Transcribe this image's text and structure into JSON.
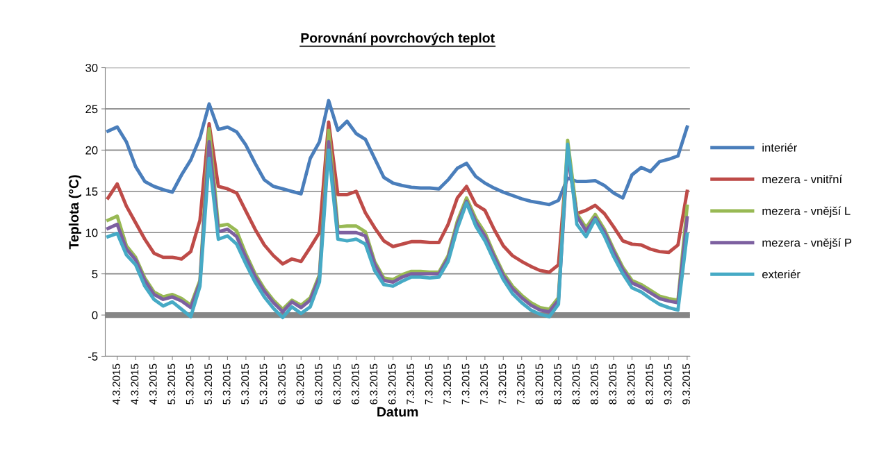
{
  "chart_data": {
    "type": "line",
    "title": "Porovnání povrchových teplot",
    "xlabel": "Datum",
    "ylabel": "Teplota (°C)",
    "categories": [
      null,
      "4.3.2015",
      null,
      "4.3.2015",
      null,
      "4.3.2015",
      null,
      "5.3.2015",
      null,
      "5.3.2015",
      null,
      "5.3.2015",
      null,
      "5.3.2015",
      null,
      "5.3.2015",
      null,
      "5.3.2015",
      null,
      "6.3.2015",
      null,
      "6.3.2015",
      null,
      "6.3.2015",
      null,
      "6.3.2015",
      null,
      "6.3.2015",
      null,
      "6.3.2015",
      null,
      "6.3.2015",
      null,
      "7.3.2015",
      null,
      "7.3.2015",
      null,
      "7.3.2015",
      null,
      "7.3.2015",
      null,
      "7.3.2015",
      null,
      "7.3.2015",
      null,
      "7.3.2015",
      null,
      "8.3.2015",
      null,
      "8.3.2015",
      null,
      "8.3.2015",
      null,
      "8.3.2015",
      null,
      "8.3.2015",
      null,
      "8.3.2015",
      null,
      "8.3.2015",
      null,
      "9.3.2015",
      null,
      "9.3.2015"
    ],
    "ylim": [
      -5,
      30
    ],
    "yticks": [
      -5,
      0,
      5,
      10,
      15,
      20,
      25,
      30
    ],
    "grid": "y",
    "legend": "right",
    "marker": "none",
    "line_style": "solid",
    "ref_lines": [
      {
        "axis": "y",
        "value": 0,
        "color": "#868686"
      }
    ],
    "series": [
      {
        "name": "interiér",
        "color": "#4a7ebb",
        "values": [
          22.3,
          22.8,
          21.0,
          18.0,
          16.2,
          15.6,
          15.2,
          14.9,
          17.0,
          18.8,
          21.5,
          25.6,
          22.5,
          22.8,
          22.2,
          20.6,
          18.4,
          16.4,
          15.6,
          15.3,
          15.0,
          14.7,
          19.0,
          21.0,
          26.0,
          22.4,
          23.5,
          22.0,
          21.3,
          19.0,
          16.7,
          16.0,
          15.7,
          15.5,
          15.4,
          15.4,
          15.3,
          16.4,
          17.8,
          18.4,
          16.8,
          16.0,
          15.4,
          14.9,
          14.5,
          14.1,
          13.8,
          13.6,
          13.4,
          13.9,
          16.6,
          16.2,
          16.2,
          16.3,
          15.7,
          14.8,
          14.2,
          17.0,
          17.9,
          17.4,
          18.6,
          18.9,
          19.3,
          22.8
        ]
      },
      {
        "name": "mezera - vnitřní",
        "color": "#be4b48",
        "values": [
          14.2,
          15.9,
          13.2,
          11.2,
          9.2,
          7.5,
          7.0,
          7.0,
          6.8,
          7.7,
          11.5,
          23.2,
          15.6,
          15.3,
          14.8,
          12.6,
          10.4,
          8.5,
          7.2,
          6.2,
          6.8,
          6.5,
          8.2,
          10.0,
          23.4,
          14.6,
          14.6,
          15.0,
          12.4,
          10.6,
          9.0,
          8.3,
          8.6,
          8.9,
          8.9,
          8.8,
          8.8,
          11.0,
          14.2,
          15.6,
          13.4,
          12.7,
          10.4,
          8.4,
          7.2,
          6.5,
          5.9,
          5.4,
          5.2,
          6.1,
          19.7,
          12.3,
          12.7,
          13.3,
          12.3,
          10.7,
          9.0,
          8.6,
          8.5,
          8.0,
          7.7,
          7.6,
          8.5,
          15.0
        ]
      },
      {
        "name": "mezera - vnější L",
        "color": "#98b954",
        "values": [
          11.5,
          12.0,
          8.4,
          7.0,
          4.5,
          2.8,
          2.2,
          2.5,
          2.0,
          1.2,
          4.2,
          22.6,
          10.8,
          11.0,
          10.2,
          7.4,
          5.0,
          3.2,
          1.8,
          0.7,
          1.8,
          1.2,
          2.1,
          4.9,
          22.4,
          10.7,
          10.8,
          10.8,
          10.1,
          6.5,
          4.5,
          4.3,
          4.9,
          5.3,
          5.3,
          5.2,
          5.2,
          7.2,
          11.4,
          14.2,
          11.7,
          10.0,
          7.4,
          5.1,
          3.5,
          2.4,
          1.5,
          0.9,
          0.7,
          2.1,
          21.2,
          12.3,
          10.6,
          12.2,
          10.4,
          8.0,
          5.8,
          4.2,
          3.7,
          3.0,
          2.3,
          2.0,
          1.8,
          13.2
        ]
      },
      {
        "name": "mezera - vnější P",
        "color": "#7d60a0",
        "values": [
          10.5,
          11.0,
          8.0,
          6.7,
          4.2,
          2.5,
          1.9,
          2.2,
          1.7,
          0.9,
          3.9,
          21.0,
          10.1,
          10.4,
          9.5,
          7.0,
          4.7,
          2.9,
          1.5,
          0.4,
          1.6,
          0.9,
          1.8,
          4.6,
          21.0,
          10.0,
          10.0,
          10.0,
          9.6,
          6.2,
          4.2,
          4.0,
          4.6,
          5.0,
          5.0,
          5.0,
          5.0,
          6.9,
          11.0,
          13.8,
          11.3,
          9.6,
          7.1,
          4.8,
          3.2,
          2.1,
          1.2,
          0.6,
          0.4,
          1.8,
          19.5,
          12.0,
          10.2,
          11.8,
          10.1,
          7.7,
          5.5,
          3.9,
          3.4,
          2.7,
          2.0,
          1.7,
          1.5,
          11.8
        ]
      },
      {
        "name": "exteriér",
        "color": "#46aac5",
        "values": [
          9.5,
          9.9,
          7.3,
          6.1,
          3.5,
          1.9,
          1.1,
          1.6,
          0.7,
          -0.2,
          3.5,
          19.0,
          9.2,
          9.6,
          8.6,
          6.2,
          4.0,
          2.2,
          0.8,
          -0.3,
          1.0,
          0.2,
          1.0,
          4.0,
          20.0,
          9.2,
          9.0,
          9.2,
          8.6,
          5.4,
          3.7,
          3.5,
          4.1,
          4.6,
          4.6,
          4.5,
          4.6,
          6.5,
          10.5,
          13.6,
          10.8,
          9.0,
          6.6,
          4.3,
          2.6,
          1.5,
          0.6,
          0.1,
          -0.2,
          1.3,
          20.7,
          11.0,
          9.5,
          11.6,
          9.6,
          7.1,
          5.0,
          3.3,
          2.8,
          2.0,
          1.3,
          0.9,
          0.6,
          9.8
        ]
      }
    ]
  }
}
